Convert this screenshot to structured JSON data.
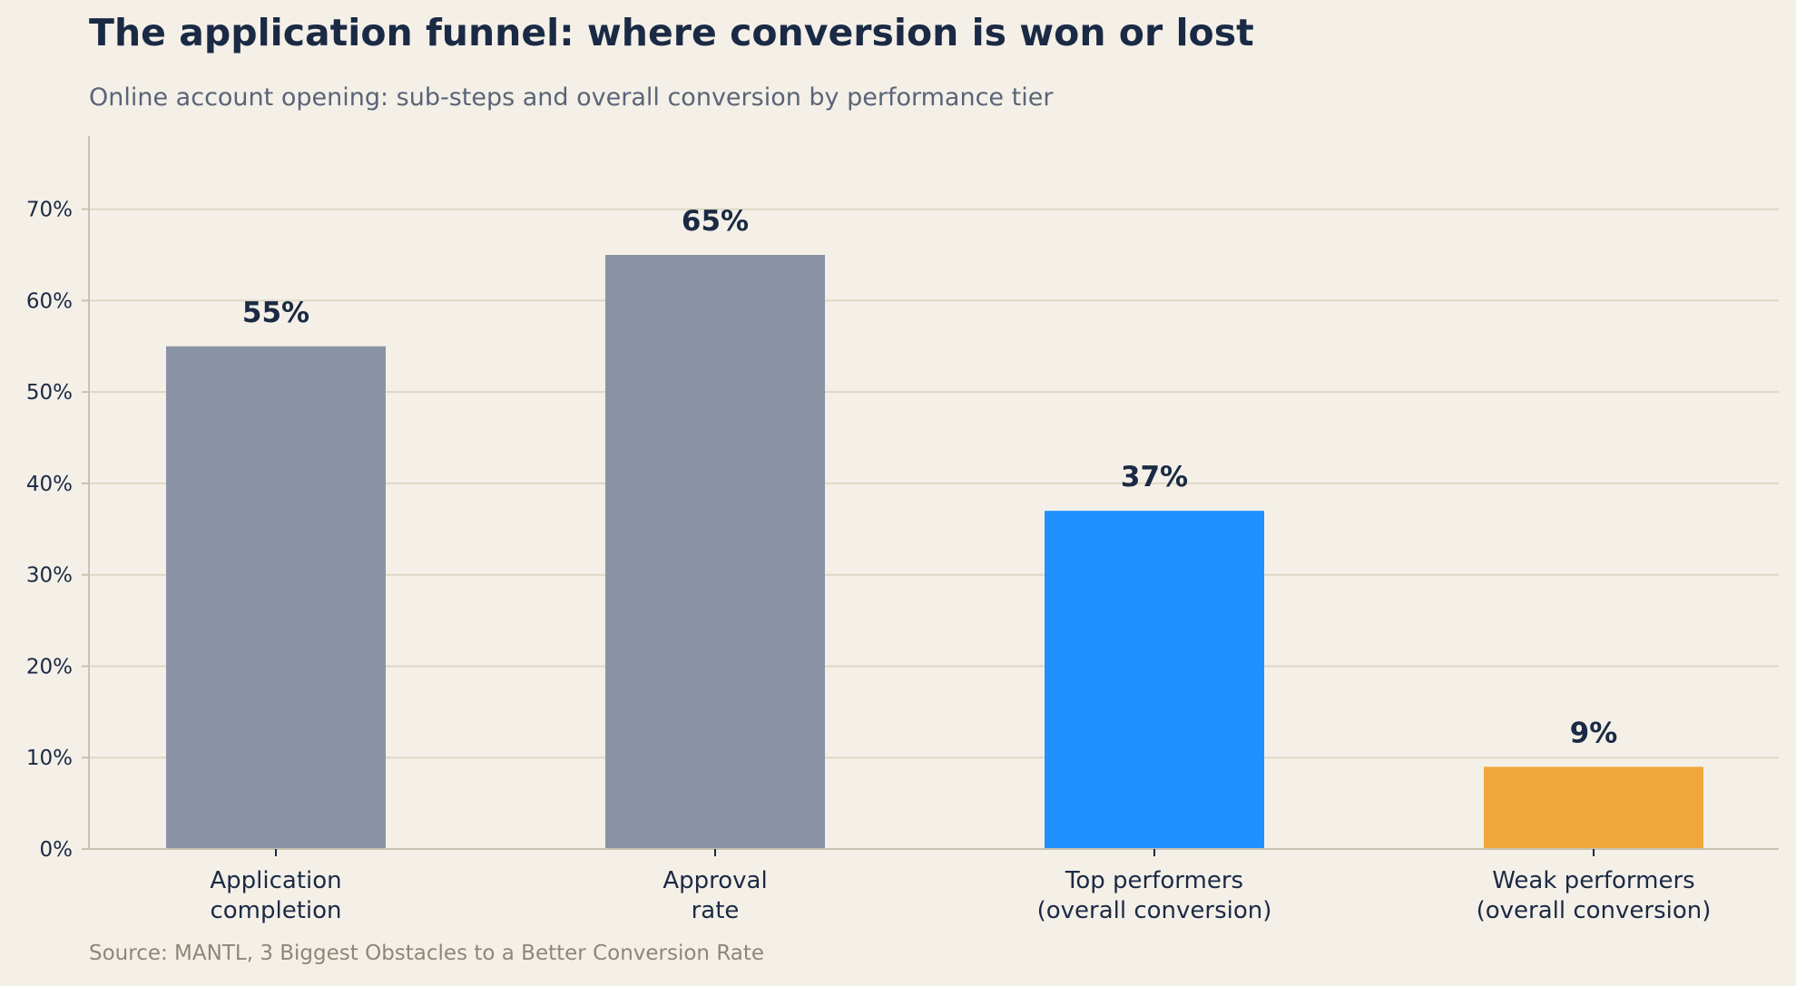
{
  "chart_data": {
    "type": "bar",
    "title": "The application funnel: where conversion is won or lost",
    "subtitle": "Online account opening: sub-steps and overall conversion by performance tier",
    "source": "Source: MANTL, 3 Biggest Obstacles to a Better Conversion Rate",
    "xlabel": "",
    "ylabel": "",
    "categories": [
      [
        "Application",
        "completion"
      ],
      [
        "Approval",
        "rate"
      ],
      [
        "Top performers",
        "(overall conversion)"
      ],
      [
        "Weak performers",
        "(overall conversion)"
      ]
    ],
    "values": [
      55,
      65,
      37,
      9
    ],
    "value_labels": [
      "55%",
      "65%",
      "37%",
      "9%"
    ],
    "bar_colors": [
      "#8a93a5",
      "#8a93a5",
      "#1e90ff",
      "#f0a83c"
    ],
    "ylim": [
      0,
      78
    ],
    "yticks": [
      0,
      10,
      20,
      30,
      40,
      50,
      60,
      70
    ],
    "ytick_labels": [
      "0%",
      "10%",
      "20%",
      "30%",
      "40%",
      "50%",
      "60%",
      "70%"
    ],
    "grid": "horizontal",
    "legend": "none"
  },
  "colors": {
    "background": "#f4f0e8",
    "text": "#1b2a44",
    "grid": "#ddd8c4",
    "axis": "#c8c2b0"
  }
}
